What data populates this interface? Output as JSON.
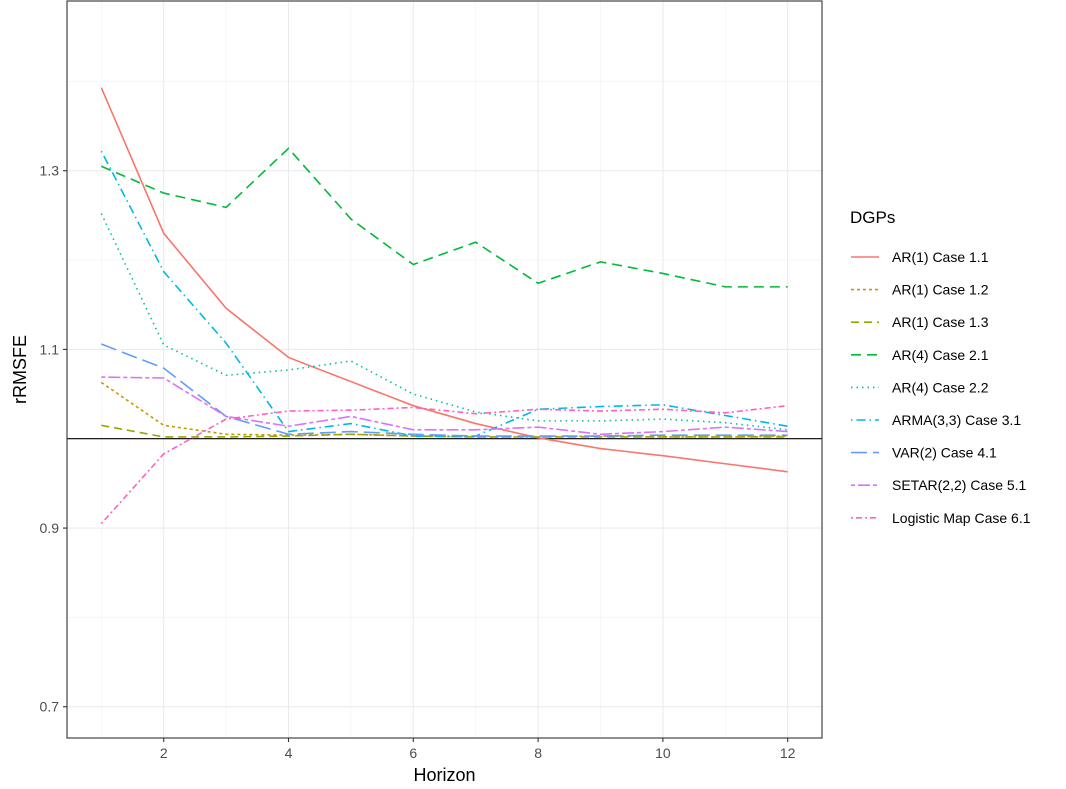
{
  "chart_data": {
    "type": "line",
    "xlabel": "Horizon",
    "ylabel": "rRMSFE",
    "xlim": [
      0.45,
      12.55
    ],
    "ylim": [
      0.665,
      1.49
    ],
    "x_ticks": [
      2,
      4,
      6,
      8,
      10,
      12
    ],
    "x_tick_labels": [
      "2",
      "4",
      "6",
      "8",
      "10",
      "12"
    ],
    "y_ticks": [
      0.7,
      0.9,
      1.1,
      1.3
    ],
    "y_tick_labels": [
      "0.7",
      "0.9",
      "1.1",
      "1.3"
    ],
    "reference_line": 1.0,
    "grid": true,
    "legend_title": "DGPs",
    "legend_position": "right",
    "x": [
      1,
      2,
      3,
      4,
      5,
      6,
      7,
      8,
      9,
      10,
      11,
      12
    ],
    "series": [
      {
        "name": "AR(1) Case 1.1",
        "color": "#F8766D",
        "dash": "solid",
        "values": [
          1.393,
          1.23,
          1.146,
          1.091,
          1.064,
          1.037,
          1.017,
          1.001,
          0.989,
          0.981,
          0.972,
          0.963
        ]
      },
      {
        "name": "AR(1) Case 1.2",
        "color": "#C49A00",
        "dash": "dotted-short",
        "values": [
          1.063,
          1.015,
          1.005,
          1.004,
          1.005,
          1.003,
          1.002,
          1.002,
          1.003,
          1.002,
          1.002,
          1.003
        ]
      },
      {
        "name": "AR(1) Case 1.3",
        "color": "#99A800",
        "dash": "dashed",
        "values": [
          1.015,
          1.002,
          1.002,
          1.003,
          1.005,
          1.003,
          1.002,
          1.002,
          1.002,
          1.002,
          1.002,
          1.002
        ]
      },
      {
        "name": "AR(4) Case 2.1",
        "color": "#00BA38",
        "dash": "longdash",
        "values": [
          1.305,
          1.275,
          1.259,
          1.325,
          1.246,
          1.195,
          1.22,
          1.174,
          1.198,
          1.185,
          1.17,
          1.17
        ]
      },
      {
        "name": "AR(4) Case 2.2",
        "color": "#00C19F",
        "dash": "dotted",
        "values": [
          1.252,
          1.105,
          1.071,
          1.077,
          1.087,
          1.05,
          1.03,
          1.02,
          1.02,
          1.022,
          1.018,
          1.01
        ]
      },
      {
        "name": "ARMA(3,3) Case 3.1",
        "color": "#00B9E3",
        "dash": "dotdash",
        "values": [
          1.322,
          1.187,
          1.107,
          1.008,
          1.017,
          1.003,
          1.003,
          1.033,
          1.036,
          1.038,
          1.026,
          1.014
        ]
      },
      {
        "name": "VAR(2) Case 4.1",
        "color": "#619CFF",
        "dash": "longdash-2",
        "values": [
          1.106,
          1.079,
          1.025,
          1.005,
          1.008,
          1.005,
          1.003,
          1.003,
          1.003,
          1.004,
          1.004,
          1.004
        ]
      },
      {
        "name": "SETAR(2,2) Case 5.1",
        "color": "#DB72FB",
        "dash": "twodash",
        "values": [
          1.069,
          1.068,
          1.025,
          1.014,
          1.025,
          1.01,
          1.01,
          1.013,
          1.005,
          1.008,
          1.013,
          1.008
        ]
      },
      {
        "name": "Logistic Map Case 6.1",
        "color": "#FF61C3",
        "dash": "dashdot-tight",
        "values": [
          0.905,
          0.983,
          1.022,
          1.031,
          1.032,
          1.035,
          1.028,
          1.033,
          1.031,
          1.033,
          1.029,
          1.037
        ]
      }
    ]
  }
}
